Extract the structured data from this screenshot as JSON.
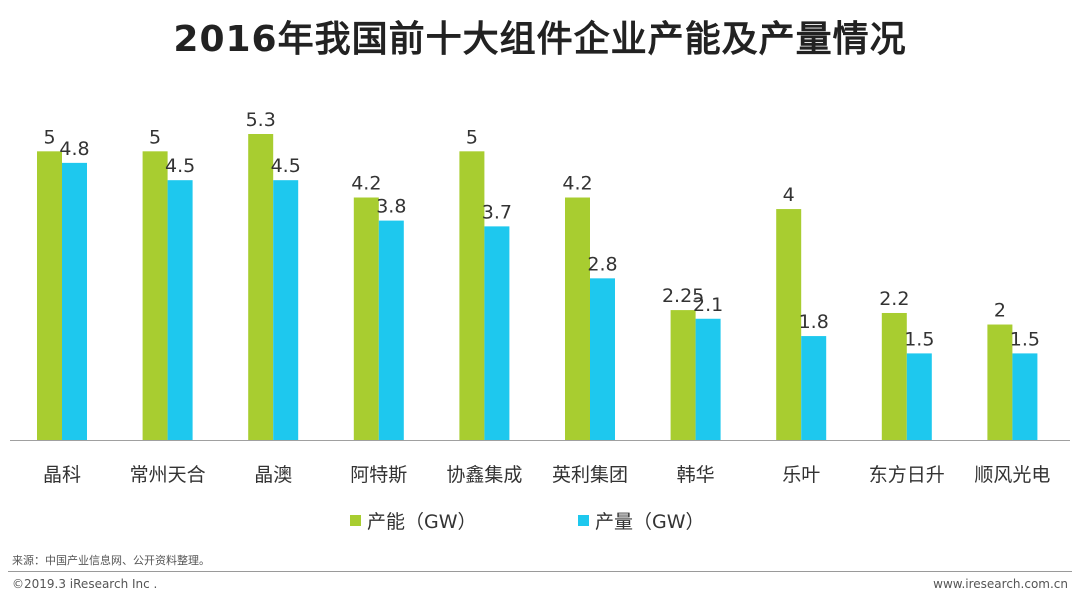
{
  "chart_data": {
    "type": "bar",
    "title": "2016年我国前十大组件企业产能及产量情况",
    "xlabel": "",
    "ylabel": "",
    "ylim": [
      0,
      5.3
    ],
    "grid": false,
    "categories": [
      "晶科",
      "常州天合",
      "晶澳",
      "阿特斯",
      "协鑫集成",
      "英利集团",
      "韩华",
      "乐叶",
      "东方日升",
      "顺风光电"
    ],
    "series": [
      {
        "name": "产能（GW）",
        "color": "#a8cd30",
        "values": [
          5,
          5,
          5.3,
          4.2,
          5,
          4.2,
          2.25,
          4,
          2.2,
          2
        ],
        "labels": [
          "5",
          "5",
          "5.3",
          "4.2",
          "5",
          "4.2",
          "2.25",
          "4",
          "2.2",
          "2"
        ]
      },
      {
        "name": "产量（GW）",
        "color": "#1ec8ee",
        "values": [
          4.8,
          4.5,
          4.5,
          3.8,
          3.7,
          2.8,
          2.1,
          1.8,
          1.5,
          1.5
        ],
        "labels": [
          "4.8",
          "4.5",
          "4.5",
          "3.8",
          "3.7",
          "2.8",
          "2.1",
          "1.8",
          "1.5",
          "1.5"
        ]
      }
    ],
    "legend_position": "bottom-center"
  },
  "footer": {
    "source": "来源：中国产业信息网、公开资料整理。",
    "copyright": "©2019.3 iResearch Inc .",
    "website": "www.iresearch.com.cn"
  }
}
